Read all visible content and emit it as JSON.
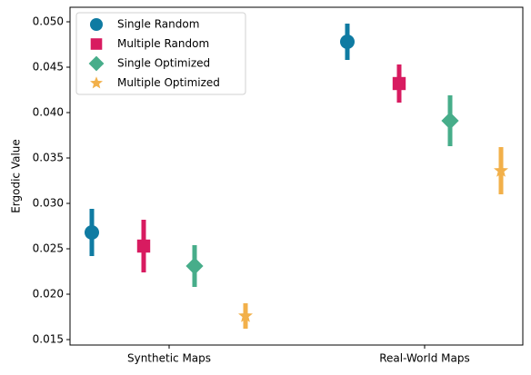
{
  "chart_data": {
    "type": "errorbar",
    "y_label": "Ergodic Value",
    "categories": [
      "Synthetic Maps",
      "Real-World Maps"
    ],
    "series": [
      {
        "name": "Single Random",
        "color": "#0f7ba2",
        "marker": "circle",
        "values": [
          0.0268,
          0.0478
        ],
        "errors": [
          0.0026,
          0.002
        ]
      },
      {
        "name": "Multiple Random",
        "color": "#d81b60",
        "marker": "square",
        "values": [
          0.0253,
          0.0432
        ],
        "errors": [
          0.0029,
          0.0021
        ]
      },
      {
        "name": "Single Optimized",
        "color": "#47ad8a",
        "marker": "diamond",
        "values": [
          0.0231,
          0.0391
        ],
        "errors": [
          0.0023,
          0.0028
        ]
      },
      {
        "name": "Multiple Optimized",
        "color": "#f2b04a",
        "marker": "star",
        "values": [
          0.0176,
          0.0336
        ],
        "errors": [
          0.0014,
          0.0026
        ]
      }
    ],
    "ylim": [
      0.0144,
      0.0516
    ],
    "yticks": [
      0.015,
      {
        "value": 0.02,
        "label": "0.020"
      },
      0.025,
      {
        "value": 0.03,
        "label": "0.030"
      },
      0.035,
      {
        "value": 0.04,
        "label": "0.040"
      },
      0.045,
      {
        "value": 0.05,
        "label": "0.050"
      }
    ],
    "legend": "upper left",
    "grid": false
  }
}
